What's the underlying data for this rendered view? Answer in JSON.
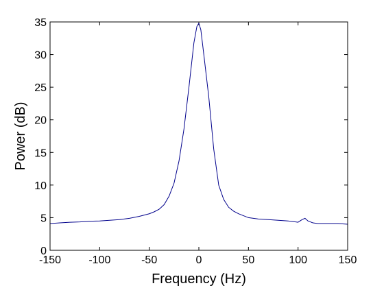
{
  "chart_data": {
    "type": "line",
    "title": "",
    "xlabel": "Frequency (Hz)",
    "ylabel": "Power (dB)",
    "xlim": [
      -150,
      150
    ],
    "ylim": [
      0,
      35
    ],
    "xticks": [
      -150,
      -100,
      -50,
      0,
      50,
      100,
      150
    ],
    "yticks": [
      0,
      5,
      10,
      15,
      20,
      25,
      30,
      35
    ],
    "grid": false,
    "legend": false,
    "series": [
      {
        "color": "#00008b",
        "x": [
          -150,
          -140,
          -130,
          -120,
          -110,
          -100,
          -90,
          -80,
          -70,
          -60,
          -50,
          -45,
          -40,
          -35,
          -30,
          -25,
          -20,
          -15,
          -10,
          -5,
          -2,
          0,
          2,
          5,
          10,
          15,
          20,
          25,
          30,
          35,
          40,
          45,
          50,
          60,
          70,
          80,
          90,
          95,
          100,
          104,
          107,
          110,
          115,
          120,
          130,
          140,
          150
        ],
        "values": [
          4.1,
          4.2,
          4.3,
          4.35,
          4.45,
          4.5,
          4.6,
          4.7,
          4.9,
          5.2,
          5.6,
          5.9,
          6.3,
          7.0,
          8.3,
          10.3,
          13.7,
          18.6,
          25.0,
          31.8,
          34.3,
          34.8,
          33.8,
          30.0,
          23.5,
          15.5,
          10.0,
          7.8,
          6.6,
          6.0,
          5.6,
          5.3,
          5.0,
          4.8,
          4.7,
          4.6,
          4.5,
          4.4,
          4.3,
          4.7,
          4.9,
          4.5,
          4.2,
          4.1,
          4.1,
          4.1,
          4.0
        ]
      }
    ]
  }
}
